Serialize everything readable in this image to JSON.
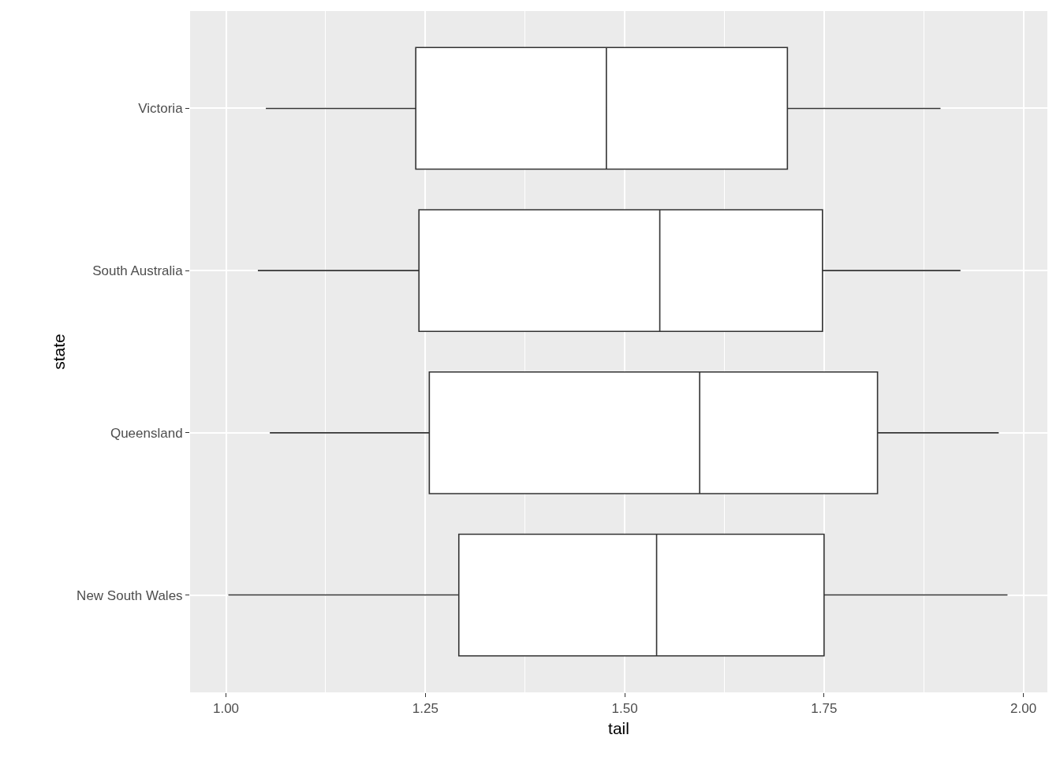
{
  "chart_data": {
    "type": "box",
    "orientation": "horizontal",
    "xlabel": "tail",
    "ylabel": "state",
    "color": "#333333",
    "categories": [
      "Victoria",
      "South Australia",
      "Queensland",
      "New South Wales"
    ],
    "boxes": [
      {
        "low": 1.05,
        "q1": 1.238,
        "median": 1.477,
        "q3": 1.704,
        "high": 1.896
      },
      {
        "low": 1.04,
        "q1": 1.242,
        "median": 1.544,
        "q3": 1.748,
        "high": 1.921
      },
      {
        "low": 1.055,
        "q1": 1.255,
        "median": 1.594,
        "q3": 1.817,
        "high": 1.969
      },
      {
        "low": 1.003,
        "q1": 1.292,
        "median": 1.54,
        "q3": 1.75,
        "high": 1.98
      }
    ],
    "xlim": [
      0.955,
      2.03
    ],
    "xticks": [
      {
        "value": 1,
        "label": "1.00"
      },
      {
        "value": 1.25,
        "label": "1.25"
      },
      {
        "value": 1.5,
        "label": "1.50"
      },
      {
        "value": 1.75,
        "label": "1.75"
      },
      {
        "value": 2,
        "label": "2.00"
      }
    ],
    "grid": true,
    "legend": false
  }
}
